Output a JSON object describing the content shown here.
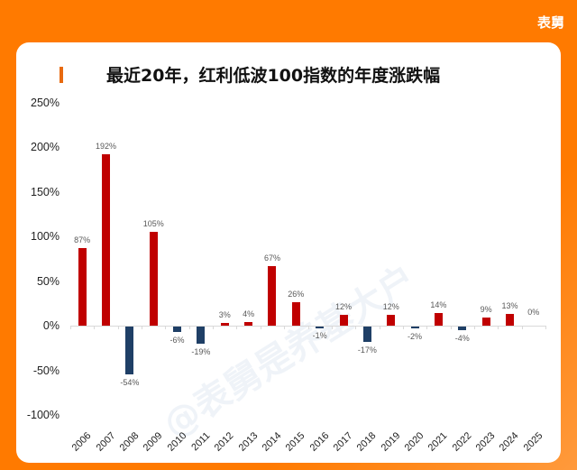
{
  "brand": "表舅",
  "watermark": "@表舅是养基大户",
  "colors": {
    "background": "#ff7a00",
    "positive": "#c00000",
    "negative": "#1f3f66",
    "accent": "#e86a10"
  },
  "chart_data": {
    "type": "bar",
    "title": "最近20年，红利低波100指数的年度涨跌幅",
    "xlabel": "",
    "ylabel": "",
    "ylim": [
      -100,
      250
    ],
    "yticks": [
      "250%",
      "200%",
      "150%",
      "100%",
      "50%",
      "0%",
      "-50%",
      "-100%"
    ],
    "ytick_values": [
      250,
      200,
      150,
      100,
      50,
      0,
      -50,
      -100
    ],
    "grid": false,
    "legend": null,
    "categories": [
      "2006",
      "2007",
      "2008",
      "2009",
      "2010",
      "2011",
      "2012",
      "2013",
      "2014",
      "2015",
      "2016",
      "2017",
      "2018",
      "2019",
      "2020",
      "2021",
      "2022",
      "2023",
      "2024",
      "2025"
    ],
    "values": [
      87,
      192,
      -54,
      105,
      -6,
      -19,
      3,
      4,
      67,
      26,
      -1,
      12,
      -17,
      12,
      -2,
      14,
      -4,
      9,
      13,
      0
    ],
    "labels": [
      "87%",
      "192%",
      "-54%",
      "105%",
      "-6%",
      "-19%",
      "3%",
      "4%",
      "67%",
      "26%",
      "-1%",
      "12%",
      "-17%",
      "12%",
      "-2%",
      "14%",
      "-4%",
      "9%",
      "13%",
      "0%"
    ]
  }
}
